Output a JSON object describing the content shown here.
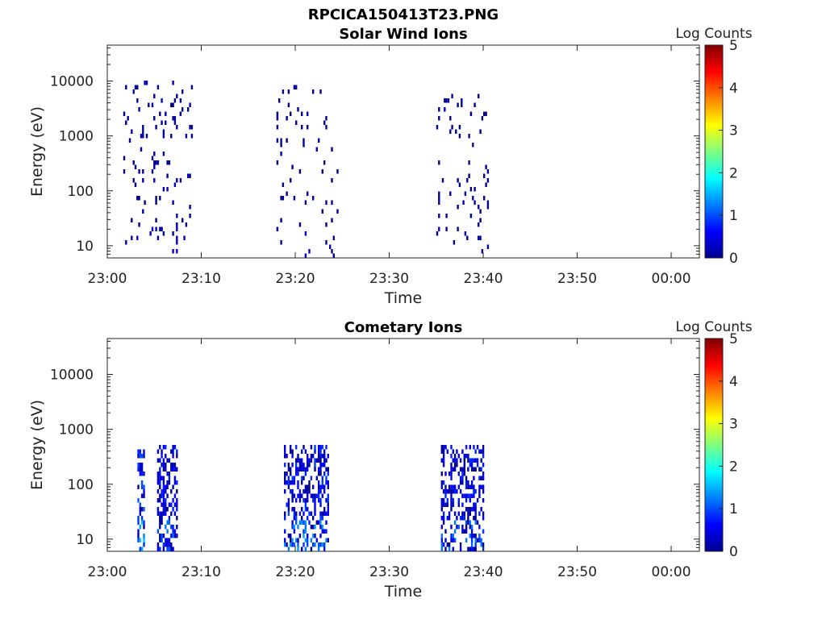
{
  "figure_title": "RPCICA150413T23.PNG",
  "colors": {
    "axis": "#222222",
    "background": "#ffffff"
  },
  "colorbar": {
    "label": "Log Counts",
    "ticks": [
      "0",
      "1",
      "2",
      "3",
      "4",
      "5"
    ],
    "range": [
      0,
      5
    ],
    "colormap": "jet"
  },
  "chart_data": [
    {
      "type": "heatmap",
      "title": "Solar Wind Ions",
      "xlabel": "Time",
      "ylabel": "Energy (eV)",
      "x_tick_labels": [
        "23:00",
        "23:10",
        "23:20",
        "23:30",
        "23:40",
        "23:50",
        "00:00"
      ],
      "x_range_minutes": [
        0,
        63
      ],
      "y_tick_labels": [
        "10",
        "100",
        "1000",
        "10000"
      ],
      "y_scale": "log",
      "y_range": [
        6,
        45000
      ],
      "bursts": [
        {
          "start_min": 1.5,
          "end_min": 9,
          "energy_min": 6,
          "energy_max": 9000,
          "max_log_count": 0.4,
          "density": 0.07
        },
        {
          "start_min": 18,
          "end_min": 24.5,
          "energy_min": 6,
          "energy_max": 8000,
          "max_log_count": 0.3,
          "density": 0.05
        },
        {
          "start_min": 35,
          "end_min": 40.5,
          "energy_min": 6,
          "energy_max": 6500,
          "max_log_count": 0.3,
          "density": 0.06
        }
      ]
    },
    {
      "type": "heatmap",
      "title": "Cometary Ions",
      "xlabel": "Time",
      "ylabel": "Energy (eV)",
      "x_tick_labels": [
        "23:00",
        "23:10",
        "23:20",
        "23:30",
        "23:40",
        "23:50",
        "00:00"
      ],
      "x_range_minutes": [
        0,
        63
      ],
      "y_tick_labels": [
        "10",
        "100",
        "1000",
        "10000"
      ],
      "y_scale": "log",
      "y_range": [
        6,
        45000
      ],
      "bursts": [
        {
          "start_min": 3.2,
          "end_min": 4,
          "energy_min": 6,
          "energy_max": 400,
          "max_log_count": 1.6,
          "density": 0.45
        },
        {
          "start_min": 5.3,
          "end_min": 7.5,
          "energy_min": 6,
          "energy_max": 500,
          "max_log_count": 1.2,
          "density": 0.5
        },
        {
          "start_min": 18.8,
          "end_min": 23.5,
          "energy_min": 6,
          "energy_max": 500,
          "max_log_count": 1.4,
          "density": 0.45
        },
        {
          "start_min": 35.5,
          "end_min": 40,
          "energy_min": 6,
          "energy_max": 500,
          "max_log_count": 1.2,
          "density": 0.4
        }
      ]
    }
  ]
}
